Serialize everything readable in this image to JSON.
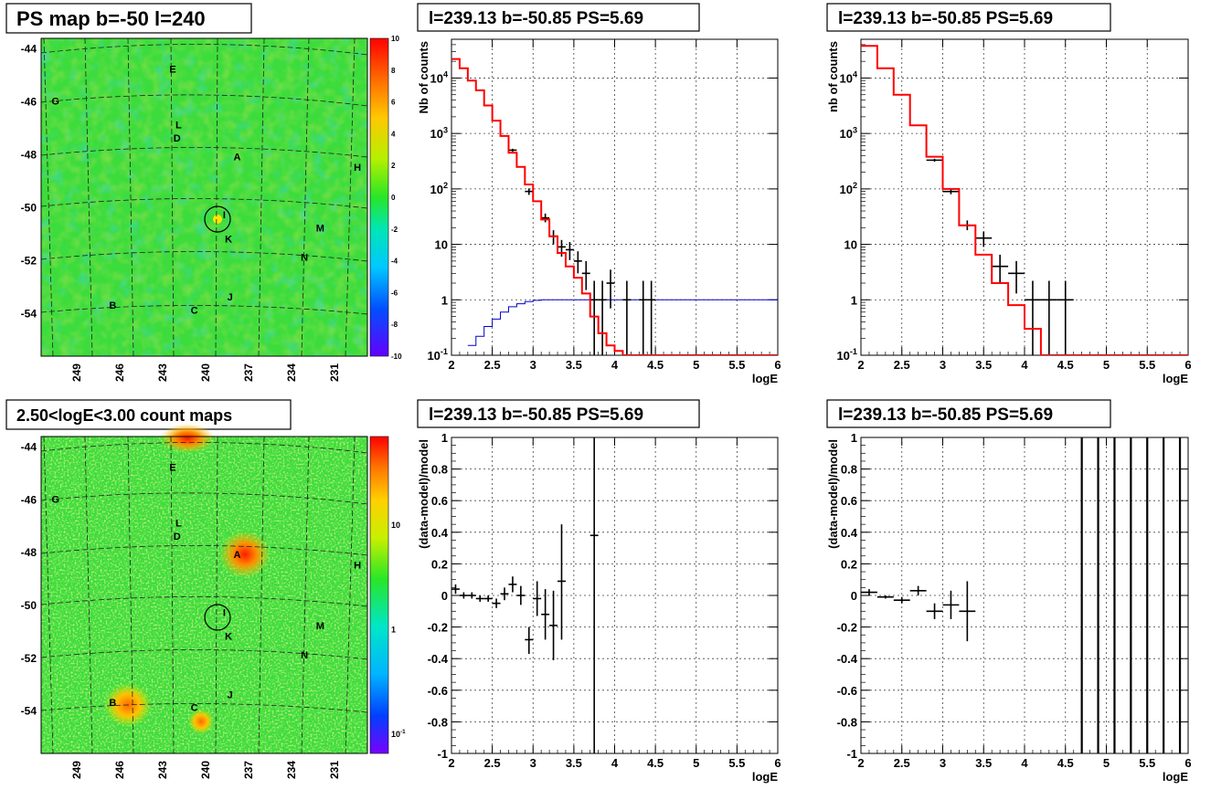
{
  "colors": {
    "model": "#ff0000",
    "data": "#000000",
    "acceptance": "#0000cc",
    "grid": "#555555",
    "map_bg": "#3cdc3c"
  },
  "maps": [
    {
      "title": "PS map b=-50 l=240",
      "y_ticks": [
        "-44",
        "-46",
        "-48",
        "-50",
        "-52",
        "-54"
      ],
      "x_ticks": [
        "249",
        "246",
        "243",
        "240",
        "237",
        "234",
        "231"
      ],
      "palette_labels": [
        "10",
        "8",
        "6",
        "4",
        "2",
        "0",
        "-2",
        "-4",
        "-6",
        "-8",
        "-10"
      ],
      "sources": [
        {
          "label": "E",
          "lon": 242.3,
          "lat": -44.9
        },
        {
          "label": "G",
          "lon": 250.5,
          "lat": -46.1
        },
        {
          "label": "L",
          "lon": 241.9,
          "lat": -47.0
        },
        {
          "label": "D",
          "lon": 242.0,
          "lat": -47.5
        },
        {
          "label": "A",
          "lon": 237.8,
          "lat": -48.2
        },
        {
          "label": "H",
          "lon": 229.4,
          "lat": -48.6
        },
        {
          "label": "I",
          "lon": 238.7,
          "lat": -50.4
        },
        {
          "label": "M",
          "lon": 232.0,
          "lat": -50.9
        },
        {
          "label": "K",
          "lon": 238.4,
          "lat": -51.3
        },
        {
          "label": "N",
          "lon": 233.1,
          "lat": -52.0
        },
        {
          "label": "J",
          "lon": 238.3,
          "lat": -53.5
        },
        {
          "label": "B",
          "lon": 246.5,
          "lat": -53.8
        },
        {
          "label": "C",
          "lon": 240.8,
          "lat": -54.0
        }
      ]
    },
    {
      "title": "2.50<logE<3.00 count maps",
      "y_ticks": [
        "-44",
        "-46",
        "-48",
        "-50",
        "-52",
        "-54"
      ],
      "x_ticks": [
        "249",
        "246",
        "243",
        "240",
        "237",
        "234",
        "231"
      ],
      "palette_labels": [
        "10",
        "1",
        "10-1"
      ],
      "sources": [
        {
          "label": "E",
          "lon": 242.3,
          "lat": -44.9
        },
        {
          "label": "G",
          "lon": 250.5,
          "lat": -46.1
        },
        {
          "label": "L",
          "lon": 241.9,
          "lat": -47.0
        },
        {
          "label": "D",
          "lon": 242.0,
          "lat": -47.5
        },
        {
          "label": "A",
          "lon": 237.8,
          "lat": -48.2
        },
        {
          "label": "H",
          "lon": 229.4,
          "lat": -48.6
        },
        {
          "label": "I",
          "lon": 238.7,
          "lat": -50.4
        },
        {
          "label": "M",
          "lon": 232.0,
          "lat": -50.9
        },
        {
          "label": "K",
          "lon": 238.4,
          "lat": -51.3
        },
        {
          "label": "N",
          "lon": 233.1,
          "lat": -52.0
        },
        {
          "label": "J",
          "lon": 238.3,
          "lat": -53.5
        },
        {
          "label": "B",
          "lon": 246.5,
          "lat": -53.8
        },
        {
          "label": "C",
          "lon": 240.8,
          "lat": -54.0
        }
      ]
    }
  ],
  "chart_data": [
    {
      "type": "line",
      "title": "l=239.13 b=-50.85 PS=5.69",
      "xlabel": "logE",
      "ylabel": "Nb of counts",
      "xlim": [
        2,
        6
      ],
      "ylim": [
        0.1,
        50000
      ],
      "log_y": true,
      "grid": true,
      "x_ticks": [
        "2",
        "2.5",
        "3",
        "3.5",
        "4",
        "4.5",
        "5",
        "5.5",
        "6"
      ],
      "y_ticks": [
        "10-1",
        "1",
        "10",
        "102",
        "103",
        "104"
      ],
      "model_step": {
        "edges": [
          2.0,
          2.1,
          2.2,
          2.3,
          2.4,
          2.5,
          2.6,
          2.7,
          2.8,
          2.9,
          3.0,
          3.1,
          3.2,
          3.3,
          3.4,
          3.5,
          3.6,
          3.7,
          3.8,
          3.9,
          4.0,
          4.1,
          6.0
        ],
        "values": [
          22000,
          15000,
          9000,
          6000,
          3200,
          1700,
          900,
          450,
          250,
          120,
          60,
          28,
          14,
          7,
          4,
          2.5,
          1.3,
          0.5,
          0.25,
          0.15,
          0.12,
          0.1
        ]
      },
      "acceptance_step": {
        "edges": [
          2.2,
          2.3,
          2.4,
          2.5,
          2.6,
          2.7,
          2.8,
          2.9,
          3.0,
          3.1,
          3.2,
          6.0
        ],
        "values": [
          0.15,
          0.22,
          0.33,
          0.45,
          0.6,
          0.75,
          0.85,
          0.93,
          0.98,
          1.0,
          1.0
        ]
      },
      "data_points": [
        {
          "x": 2.75,
          "y": 500,
          "xerr": 0.05,
          "ylo": 470,
          "yhi": 530
        },
        {
          "x": 2.95,
          "y": 90,
          "xerr": 0.05,
          "ylo": 78,
          "yhi": 102
        },
        {
          "x": 3.15,
          "y": 30,
          "xerr": 0.05,
          "ylo": 25,
          "yhi": 36
        },
        {
          "x": 3.25,
          "y": 14,
          "xerr": 0.05,
          "ylo": 10,
          "yhi": 18
        },
        {
          "x": 3.35,
          "y": 9,
          "xerr": 0.05,
          "ylo": 6,
          "yhi": 12
        },
        {
          "x": 3.45,
          "y": 8,
          "xerr": 0.05,
          "ylo": 5.2,
          "yhi": 11
        },
        {
          "x": 3.55,
          "y": 5,
          "xerr": 0.05,
          "ylo": 3,
          "yhi": 7.5
        },
        {
          "x": 3.65,
          "y": 3,
          "xerr": 0.05,
          "ylo": 1.5,
          "yhi": 5
        },
        {
          "x": 3.75,
          "y": 1,
          "xerr": 0.05,
          "ylo": 0.1,
          "yhi": 2.2
        },
        {
          "x": 3.85,
          "y": 1,
          "xerr": 0.05,
          "ylo": 0.1,
          "yhi": 2.2
        },
        {
          "x": 3.95,
          "y": 2,
          "xerr": 0.05,
          "ylo": 0.7,
          "yhi": 3.5
        },
        {
          "x": 4.15,
          "y": 1,
          "xerr": 0.05,
          "ylo": 0.1,
          "yhi": 2.2
        },
        {
          "x": 4.35,
          "y": 1,
          "xerr": 0.05,
          "ylo": 0.1,
          "yhi": 2.2
        },
        {
          "x": 4.45,
          "y": 1,
          "xerr": 0.05,
          "ylo": 0.1,
          "yhi": 2.2
        }
      ]
    },
    {
      "type": "line",
      "title": "l=239.13 b=-50.85 PS=5.69",
      "xlabel": "logE",
      "ylabel": "nb of counts",
      "xlim": [
        2,
        6
      ],
      "ylim": [
        0.1,
        50000
      ],
      "log_y": true,
      "grid": true,
      "x_ticks": [
        "2",
        "2.5",
        "3",
        "3.5",
        "4",
        "4.5",
        "5",
        "5.5",
        "6"
      ],
      "y_ticks": [
        "10-1",
        "1",
        "10",
        "102",
        "103",
        "104"
      ],
      "model_step": {
        "edges": [
          2.0,
          2.2,
          2.4,
          2.6,
          2.8,
          3.0,
          3.2,
          3.4,
          3.6,
          3.8,
          4.0,
          4.2,
          6.0
        ],
        "values": [
          38000,
          15000,
          5000,
          1400,
          380,
          100,
          22,
          6.5,
          2,
          0.8,
          0.3,
          0.1
        ]
      },
      "data_points": [
        {
          "x": 2.9,
          "y": 330,
          "xerr": 0.1,
          "ylo": 310,
          "yhi": 350
        },
        {
          "x": 3.1,
          "y": 90,
          "xerr": 0.1,
          "ylo": 80,
          "yhi": 100
        },
        {
          "x": 3.3,
          "y": 22,
          "xerr": 0.1,
          "ylo": 18,
          "yhi": 27
        },
        {
          "x": 3.5,
          "y": 13,
          "xerr": 0.1,
          "ylo": 9,
          "yhi": 17
        },
        {
          "x": 3.7,
          "y": 4,
          "xerr": 0.1,
          "ylo": 2,
          "yhi": 6.5
        },
        {
          "x": 3.9,
          "y": 3,
          "xerr": 0.1,
          "ylo": 1.3,
          "yhi": 5
        },
        {
          "x": 4.1,
          "y": 1,
          "xerr": 0.1,
          "ylo": 0.1,
          "yhi": 2.2
        },
        {
          "x": 4.3,
          "y": 1,
          "xerr": 0.1,
          "ylo": 0.1,
          "yhi": 2.2
        },
        {
          "x": 4.5,
          "y": 1,
          "xerr": 0.1,
          "ylo": 0.1,
          "yhi": 2.2
        }
      ]
    },
    {
      "type": "scatter",
      "title": "l=239.13 b=-50.85 PS=5.69",
      "xlabel": "logE",
      "ylabel": "(data-model)/model",
      "xlim": [
        2,
        6
      ],
      "ylim": [
        -1,
        1
      ],
      "grid": true,
      "x_ticks": [
        "2",
        "2.5",
        "3",
        "3.5",
        "4",
        "4.5",
        "5",
        "5.5",
        "6"
      ],
      "y_ticks": [
        "-1",
        "-0.8",
        "-0.6",
        "-0.4",
        "-0.2",
        "0",
        "0.2",
        "0.4",
        "0.6",
        "0.8",
        "1"
      ],
      "data_points": [
        {
          "x": 2.05,
          "y": 0.04,
          "xerr": 0.05,
          "ylo": 0.01,
          "yhi": 0.07
        },
        {
          "x": 2.15,
          "y": 0.0,
          "xerr": 0.05,
          "ylo": -0.02,
          "yhi": 0.02
        },
        {
          "x": 2.25,
          "y": 0.0,
          "xerr": 0.05,
          "ylo": -0.02,
          "yhi": 0.02
        },
        {
          "x": 2.35,
          "y": -0.02,
          "xerr": 0.05,
          "ylo": -0.04,
          "yhi": 0.0
        },
        {
          "x": 2.45,
          "y": -0.02,
          "xerr": 0.05,
          "ylo": -0.04,
          "yhi": 0.0
        },
        {
          "x": 2.55,
          "y": -0.05,
          "xerr": 0.05,
          "ylo": -0.08,
          "yhi": -0.02
        },
        {
          "x": 2.65,
          "y": 0.01,
          "xerr": 0.05,
          "ylo": -0.03,
          "yhi": 0.05
        },
        {
          "x": 2.75,
          "y": 0.07,
          "xerr": 0.05,
          "ylo": 0.02,
          "yhi": 0.12
        },
        {
          "x": 2.85,
          "y": 0.0,
          "xerr": 0.05,
          "ylo": -0.06,
          "yhi": 0.06
        },
        {
          "x": 2.95,
          "y": -0.28,
          "xerr": 0.05,
          "ylo": -0.37,
          "yhi": -0.2
        },
        {
          "x": 3.05,
          "y": -0.02,
          "xerr": 0.05,
          "ylo": -0.13,
          "yhi": 0.09
        },
        {
          "x": 3.15,
          "y": -0.12,
          "xerr": 0.05,
          "ylo": -0.28,
          "yhi": 0.04
        },
        {
          "x": 3.25,
          "y": -0.19,
          "xerr": 0.05,
          "ylo": -0.41,
          "yhi": 0.03
        },
        {
          "x": 3.35,
          "y": 0.09,
          "xerr": 0.05,
          "ylo": -0.28,
          "yhi": 0.45
        },
        {
          "x": 3.75,
          "y": 0.38,
          "xerr": 0.05,
          "ylo": -1.0,
          "yhi": 1.0
        }
      ]
    },
    {
      "type": "scatter",
      "title": "l=239.13 b=-50.85 PS=5.69",
      "xlabel": "logE",
      "ylabel": "(data-model)/model",
      "xlim": [
        2,
        6
      ],
      "ylim": [
        -1,
        1
      ],
      "grid": true,
      "x_ticks": [
        "2",
        "2.5",
        "3",
        "3.5",
        "4",
        "4.5",
        "5",
        "5.5",
        "6"
      ],
      "y_ticks": [
        "-1",
        "-0.8",
        "-0.6",
        "-0.4",
        "-0.2",
        "0",
        "0.2",
        "0.4",
        "0.6",
        "0.8",
        "1"
      ],
      "data_points": [
        {
          "x": 2.1,
          "y": 0.02,
          "xerr": 0.1,
          "ylo": 0.0,
          "yhi": 0.04
        },
        {
          "x": 2.3,
          "y": -0.01,
          "xerr": 0.1,
          "ylo": -0.02,
          "yhi": 0.0
        },
        {
          "x": 2.5,
          "y": -0.03,
          "xerr": 0.1,
          "ylo": -0.05,
          "yhi": -0.01
        },
        {
          "x": 2.7,
          "y": 0.03,
          "xerr": 0.1,
          "ylo": 0.0,
          "yhi": 0.06
        },
        {
          "x": 2.9,
          "y": -0.1,
          "xerr": 0.1,
          "ylo": -0.15,
          "yhi": -0.05
        },
        {
          "x": 3.1,
          "y": -0.06,
          "xerr": 0.1,
          "ylo": -0.15,
          "yhi": 0.03
        },
        {
          "x": 3.3,
          "y": -0.1,
          "xerr": 0.1,
          "ylo": -0.29,
          "yhi": 0.09
        }
      ],
      "full_range_bars_x": [
        4.7,
        4.9,
        5.1,
        5.3,
        5.5,
        5.7,
        5.9
      ]
    }
  ]
}
